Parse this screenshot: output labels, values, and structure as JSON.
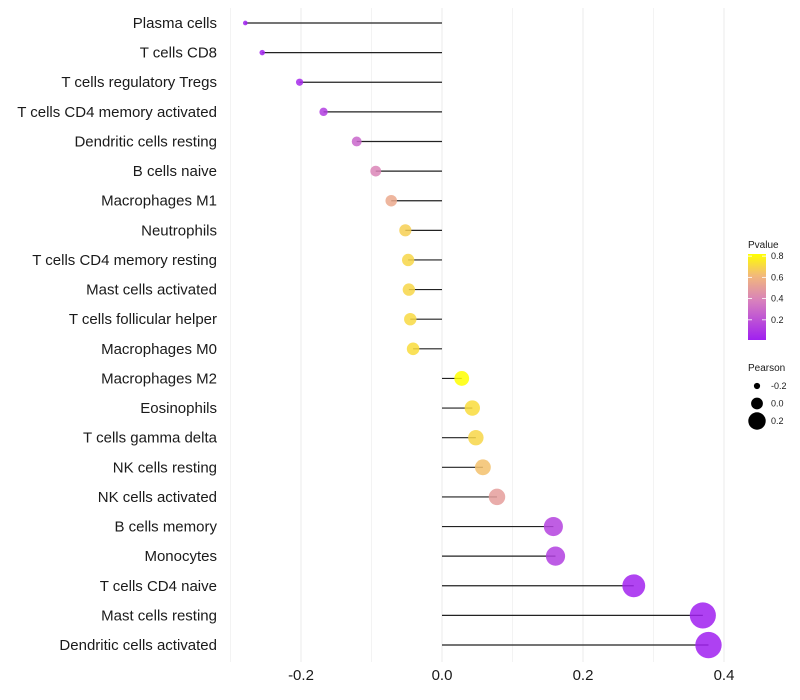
{
  "chart_data": {
    "type": "lollipop",
    "title": "",
    "xlabel": "",
    "ylabel": "",
    "xlim": [
      -0.3,
      0.42
    ],
    "x_ticks": [
      -0.2,
      0.0,
      0.2,
      0.4
    ],
    "x_tick_labels": [
      "-0.2",
      "0.0",
      "0.2",
      "0.4"
    ],
    "grid": true,
    "categories": [
      "Plasma cells",
      "T cells CD8",
      "T cells regulatory  Tregs ",
      "T cells CD4 memory activated",
      "Dendritic cells resting",
      "B cells naive",
      "Macrophages M1",
      "Neutrophils",
      "T cells CD4 memory resting",
      "Mast cells activated",
      "T cells follicular helper",
      "Macrophages M0",
      "Macrophages M2",
      "Eosinophils",
      "T cells gamma delta",
      "NK cells resting",
      "NK cells activated",
      "B cells memory",
      "Monocytes",
      "T cells CD4 naive",
      "Mast cells resting",
      "Dendritic cells activated"
    ],
    "pearson": [
      -0.279,
      -0.255,
      -0.202,
      -0.168,
      -0.121,
      -0.094,
      -0.072,
      -0.052,
      -0.048,
      -0.047,
      -0.045,
      -0.041,
      0.028,
      0.043,
      0.048,
      0.058,
      0.078,
      0.158,
      0.161,
      0.272,
      0.37,
      0.378
    ],
    "pvalue": [
      0.01,
      0.02,
      0.05,
      0.12,
      0.28,
      0.4,
      0.55,
      0.68,
      0.7,
      0.7,
      0.71,
      0.72,
      0.9,
      0.72,
      0.7,
      0.64,
      0.5,
      0.14,
      0.13,
      0.02,
      0.01,
      0.01
    ],
    "legend": {
      "position": "right",
      "color": {
        "title": "Pvalue",
        "ticks": [
          0.8,
          0.6,
          0.4,
          0.2
        ],
        "tick_labels": [
          "0.8",
          "0.6",
          "0.4",
          "0.2"
        ],
        "range": [
          0.01,
          0.82
        ],
        "low_color": "#A020F0",
        "mid_color": "#E08FB0",
        "high_color": "#FFFF00"
      },
      "size": {
        "title": "Pearson",
        "values": [
          -0.2,
          0.0,
          0.2
        ],
        "labels": [
          "-0.2",
          "0.0",
          "0.2"
        ]
      }
    }
  }
}
